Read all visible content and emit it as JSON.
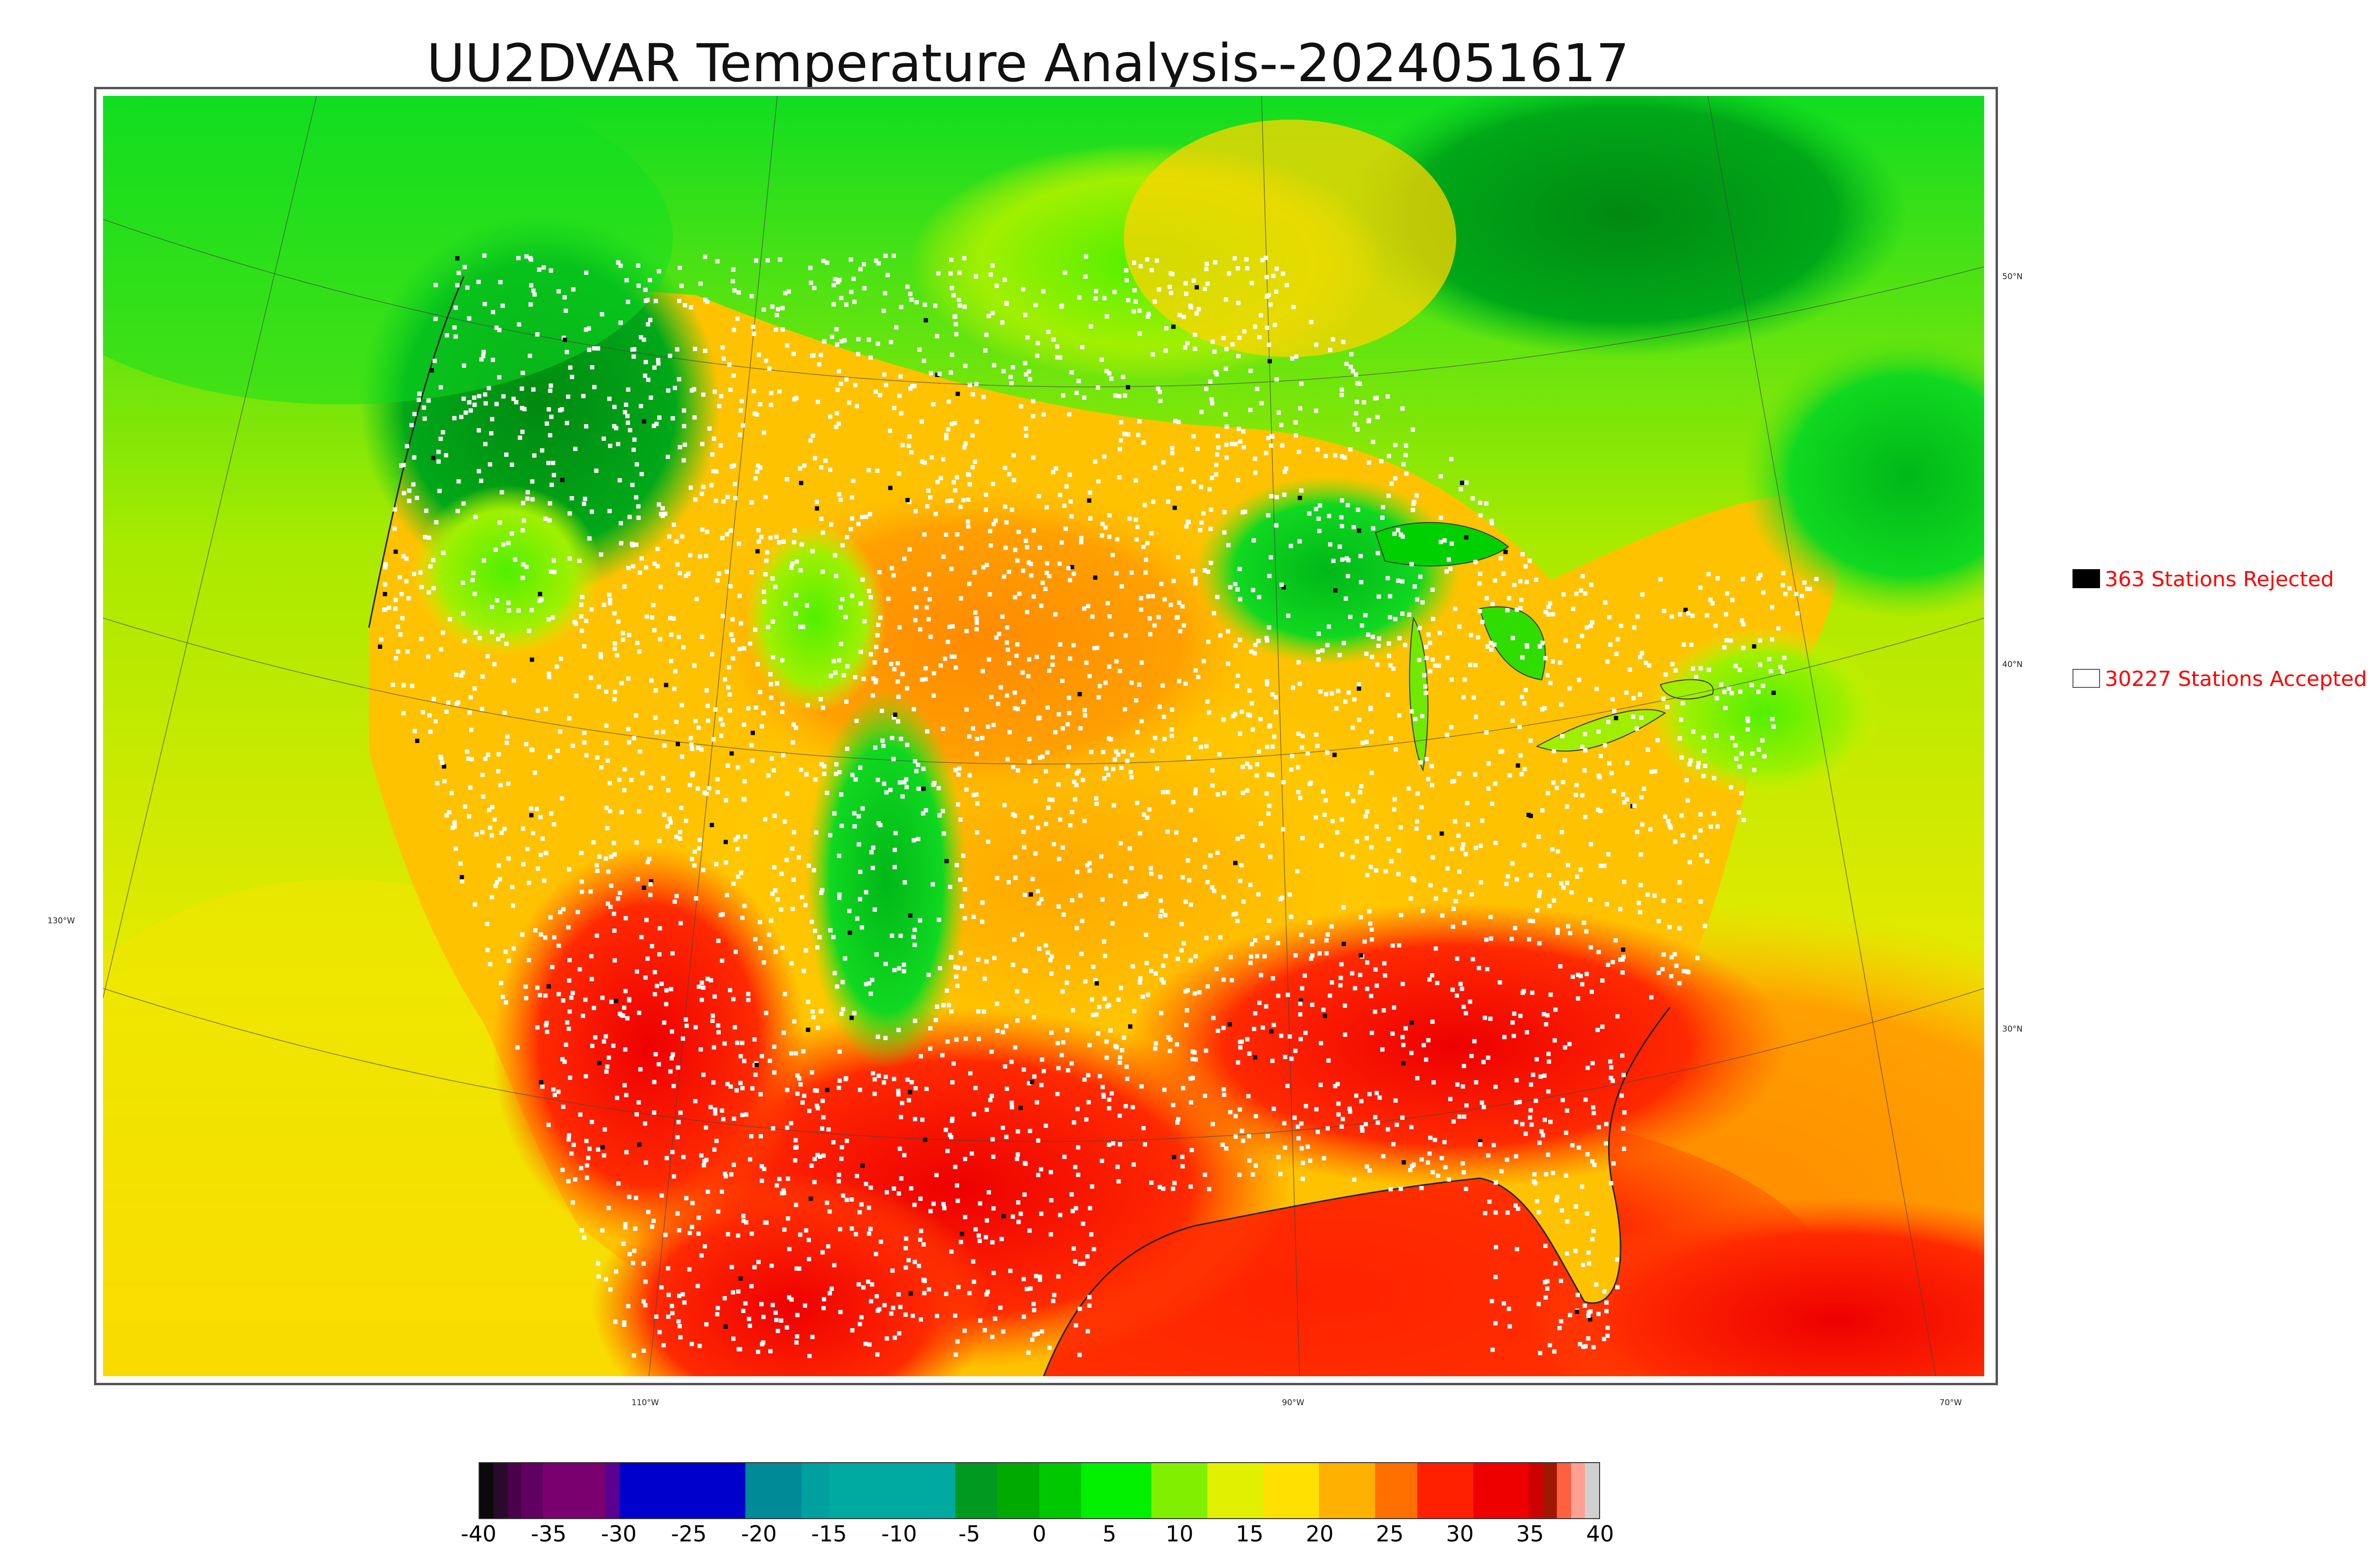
{
  "title": "UU2DVAR Temperature Analysis--2024051617",
  "map": {
    "lat_labels": [
      "50°N",
      "40°N",
      "30°N"
    ],
    "lon_labels": [
      "130°W",
      "110°W",
      "90°W",
      "70°W"
    ],
    "colors": {
      "background_sea": "#d8ee00",
      "cold_north": "#00cc22",
      "dark_green": "#00a010",
      "warm": "#ffc000",
      "hot": "#ff2000",
      "accepted_marker": "#ffffff",
      "rejected_marker": "#000000"
    }
  },
  "legend": {
    "rejected": {
      "label": "363 Stations Rejected",
      "count": 363,
      "swatch_color": "#000000"
    },
    "accepted": {
      "label": "30227 Stations Accepted",
      "count": 30227,
      "swatch_color": "#ffffff"
    },
    "text_color": "#ff0000"
  },
  "colorbar": {
    "ticks": [
      "-40",
      "-35",
      "-30",
      "-25",
      "-20",
      "-15",
      "-10",
      "-5",
      "0",
      "5",
      "10",
      "15",
      "20",
      "25",
      "30",
      "35",
      "40"
    ],
    "range": [
      -40,
      40
    ],
    "segments": [
      {
        "from": -40,
        "to": -39,
        "color": "#0a0a0a"
      },
      {
        "from": -39,
        "to": -38,
        "color": "#2a0a2a"
      },
      {
        "from": -38,
        "to": -37,
        "color": "#4a004a"
      },
      {
        "from": -37,
        "to": -35.5,
        "color": "#600060"
      },
      {
        "from": -35.5,
        "to": -31,
        "color": "#7a0070"
      },
      {
        "from": -31,
        "to": -30,
        "color": "#5a0090"
      },
      {
        "from": -30,
        "to": -21,
        "color": "#0000cc"
      },
      {
        "from": -21,
        "to": -17,
        "color": "#008a98"
      },
      {
        "from": -17,
        "to": -15,
        "color": "#00a0a0"
      },
      {
        "from": -15,
        "to": -6,
        "color": "#00aaa0"
      },
      {
        "from": -6,
        "to": -3,
        "color": "#009a20"
      },
      {
        "from": -3,
        "to": 0,
        "color": "#00aa00"
      },
      {
        "from": 0,
        "to": 3,
        "color": "#00c800"
      },
      {
        "from": 3,
        "to": 8,
        "color": "#00f000"
      },
      {
        "from": 8,
        "to": 12,
        "color": "#80f000"
      },
      {
        "from": 12,
        "to": 16,
        "color": "#e0f000"
      },
      {
        "from": 16,
        "to": 20,
        "color": "#ffe000"
      },
      {
        "from": 20,
        "to": 24,
        "color": "#ffb000"
      },
      {
        "from": 24,
        "to": 27,
        "color": "#ff7000"
      },
      {
        "from": 27,
        "to": 31,
        "color": "#ff2000"
      },
      {
        "from": 31,
        "to": 35,
        "color": "#ee0000"
      },
      {
        "from": 35,
        "to": 36,
        "color": "#cc0000"
      },
      {
        "from": 36,
        "to": 37,
        "color": "#a01800"
      },
      {
        "from": 37,
        "to": 38,
        "color": "#ff6040"
      },
      {
        "from": 38,
        "to": 39,
        "color": "#ffa090"
      },
      {
        "from": 39,
        "to": 40,
        "color": "#d0d0d0"
      }
    ]
  }
}
